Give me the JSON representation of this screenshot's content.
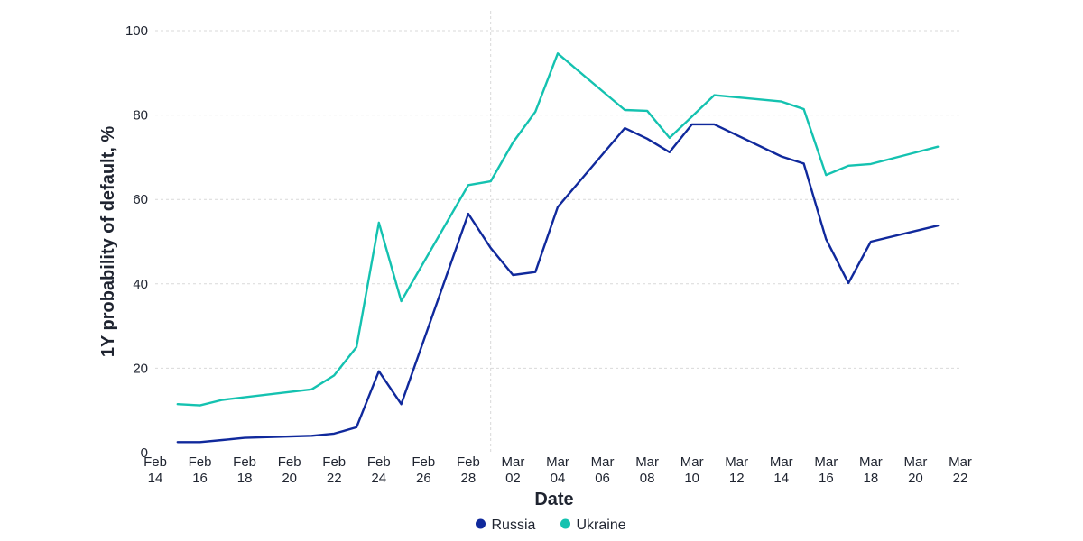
{
  "chart_data": {
    "type": "line",
    "xlabel": "Date",
    "ylabel": "1Y probability of default, %",
    "ylim": [
      0,
      100
    ],
    "yticks": [
      0,
      20,
      40,
      60,
      80,
      100
    ],
    "xlim": [
      "2022-02-14",
      "2022-03-22"
    ],
    "xticks": [
      {
        "date": "2022-02-14",
        "month": "Feb",
        "day": "14"
      },
      {
        "date": "2022-02-16",
        "month": "Feb",
        "day": "16"
      },
      {
        "date": "2022-02-18",
        "month": "Feb",
        "day": "18"
      },
      {
        "date": "2022-02-20",
        "month": "Feb",
        "day": "20"
      },
      {
        "date": "2022-02-22",
        "month": "Feb",
        "day": "22"
      },
      {
        "date": "2022-02-24",
        "month": "Feb",
        "day": "24"
      },
      {
        "date": "2022-02-26",
        "month": "Feb",
        "day": "26"
      },
      {
        "date": "2022-02-28",
        "month": "Feb",
        "day": "28"
      },
      {
        "date": "2022-03-02",
        "month": "Mar",
        "day": "02"
      },
      {
        "date": "2022-03-04",
        "month": "Mar",
        "day": "04"
      },
      {
        "date": "2022-03-06",
        "month": "Mar",
        "day": "06"
      },
      {
        "date": "2022-03-08",
        "month": "Mar",
        "day": "08"
      },
      {
        "date": "2022-03-10",
        "month": "Mar",
        "day": "10"
      },
      {
        "date": "2022-03-12",
        "month": "Mar",
        "day": "12"
      },
      {
        "date": "2022-03-14",
        "month": "Mar",
        "day": "14"
      },
      {
        "date": "2022-03-16",
        "month": "Mar",
        "day": "16"
      },
      {
        "date": "2022-03-18",
        "month": "Mar",
        "day": "18"
      },
      {
        "date": "2022-03-20",
        "month": "Mar",
        "day": "20"
      },
      {
        "date": "2022-03-22",
        "month": "Mar",
        "day": "22"
      }
    ],
    "reference_line_date": "2022-03-01",
    "grid": true,
    "legend_position": "bottom-center",
    "series": [
      {
        "name": "Russia",
        "color": "#10299c",
        "points": [
          [
            "2022-02-15",
            2.5
          ],
          [
            "2022-02-16",
            2.5
          ],
          [
            "2022-02-17",
            3.0
          ],
          [
            "2022-02-18",
            3.5
          ],
          [
            "2022-02-21",
            4.0
          ],
          [
            "2022-02-22",
            4.5
          ],
          [
            "2022-02-23",
            6.0
          ],
          [
            "2022-02-24",
            19.3
          ],
          [
            "2022-02-25",
            11.5
          ],
          [
            "2022-02-28",
            56.6
          ],
          [
            "2022-03-01",
            48.5
          ],
          [
            "2022-03-02",
            42.1
          ],
          [
            "2022-03-03",
            42.8
          ],
          [
            "2022-03-04",
            58.2
          ],
          [
            "2022-03-07",
            76.9
          ],
          [
            "2022-03-08",
            74.4
          ],
          [
            "2022-03-09",
            71.2
          ],
          [
            "2022-03-10",
            77.8
          ],
          [
            "2022-03-11",
            77.8
          ],
          [
            "2022-03-14",
            70.2
          ],
          [
            "2022-03-15",
            68.5
          ],
          [
            "2022-03-16",
            50.6
          ],
          [
            "2022-03-17",
            40.2
          ],
          [
            "2022-03-18",
            50.0
          ],
          [
            "2022-03-21",
            53.8
          ]
        ]
      },
      {
        "name": "Ukraine",
        "color": "#14c2b0",
        "points": [
          [
            "2022-02-15",
            11.5
          ],
          [
            "2022-02-16",
            11.2
          ],
          [
            "2022-02-17",
            12.5
          ],
          [
            "2022-02-21",
            15.0
          ],
          [
            "2022-02-22",
            18.3
          ],
          [
            "2022-02-23",
            25.0
          ],
          [
            "2022-02-24",
            54.5
          ],
          [
            "2022-02-25",
            35.9
          ],
          [
            "2022-02-28",
            63.4
          ],
          [
            "2022-03-01",
            64.3
          ],
          [
            "2022-03-02",
            73.5
          ],
          [
            "2022-03-03",
            80.8
          ],
          [
            "2022-03-04",
            94.6
          ],
          [
            "2022-03-07",
            81.2
          ],
          [
            "2022-03-08",
            81.0
          ],
          [
            "2022-03-09",
            74.6
          ],
          [
            "2022-03-11",
            84.7
          ],
          [
            "2022-03-14",
            83.2
          ],
          [
            "2022-03-15",
            81.4
          ],
          [
            "2022-03-16",
            65.8
          ],
          [
            "2022-03-17",
            68.0
          ],
          [
            "2022-03-18",
            68.4
          ],
          [
            "2022-03-21",
            72.5
          ]
        ]
      }
    ]
  }
}
